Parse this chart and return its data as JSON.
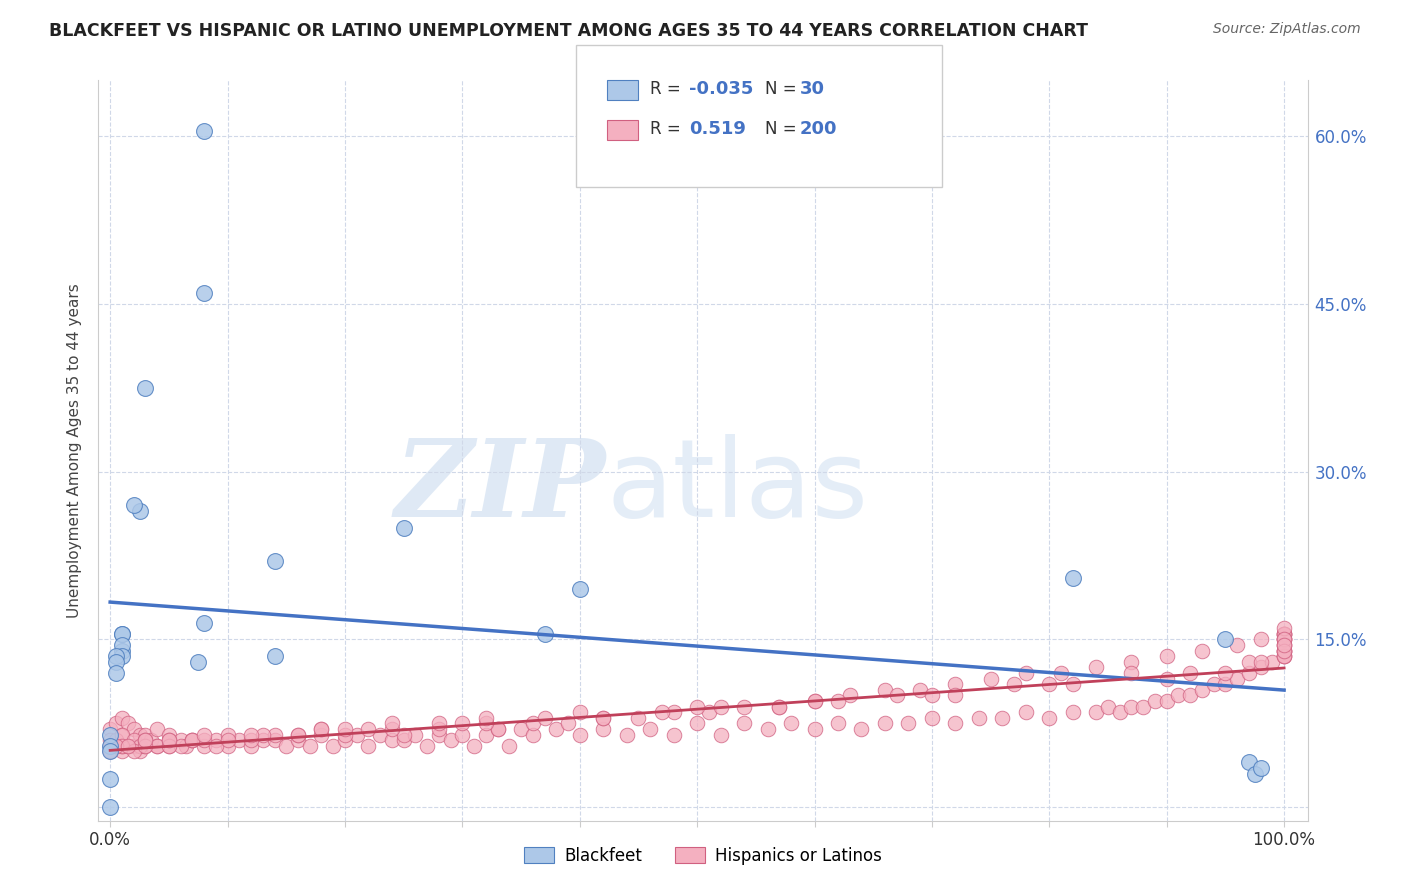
{
  "title": "BLACKFEET VS HISPANIC OR LATINO UNEMPLOYMENT AMONG AGES 35 TO 44 YEARS CORRELATION CHART",
  "source": "Source: ZipAtlas.com",
  "ylabel": "Unemployment Among Ages 35 to 44 years",
  "xlim": [
    -0.01,
    1.02
  ],
  "ylim": [
    -0.012,
    0.65
  ],
  "xticks": [
    0.0,
    0.1,
    0.2,
    0.3,
    0.4,
    0.5,
    0.6,
    0.7,
    0.8,
    0.9,
    1.0
  ],
  "xticklabels": [
    "0.0%",
    "",
    "",
    "",
    "",
    "",
    "",
    "",
    "",
    "",
    "100.0%"
  ],
  "yticks_right": [
    0.15,
    0.3,
    0.45,
    0.6
  ],
  "yticklabels_right": [
    "15.0%",
    "30.0%",
    "45.0%",
    "60.0%"
  ],
  "blue_color": "#adc8e8",
  "blue_edge_color": "#5080c0",
  "blue_line_color": "#4472c4",
  "pink_color": "#f4b0c0",
  "pink_edge_color": "#d06080",
  "pink_line_color": "#c0405a",
  "axis_label_color": "#4472c4",
  "grid_color": "#d0d8e8",
  "blackfeet_x": [
    0.08,
    0.03,
    0.025,
    0.02,
    0.01,
    0.01,
    0.01,
    0.01,
    0.01,
    0.005,
    0.005,
    0.005,
    0.0,
    0.0,
    0.0,
    0.0,
    0.0,
    0.14,
    0.14,
    0.25,
    0.37,
    0.4,
    0.08,
    0.08,
    0.075,
    0.82,
    0.95,
    0.97,
    0.975,
    0.98
  ],
  "blackfeet_y": [
    0.605,
    0.375,
    0.265,
    0.27,
    0.155,
    0.155,
    0.14,
    0.145,
    0.135,
    0.135,
    0.13,
    0.12,
    0.065,
    0.055,
    0.05,
    0.025,
    0.0,
    0.22,
    0.135,
    0.25,
    0.155,
    0.195,
    0.46,
    0.165,
    0.13,
    0.205,
    0.15,
    0.04,
    0.03,
    0.035
  ],
  "hispanic_x": [
    0.0,
    0.0,
    0.0,
    0.005,
    0.005,
    0.01,
    0.01,
    0.01,
    0.015,
    0.015,
    0.02,
    0.02,
    0.025,
    0.025,
    0.03,
    0.03,
    0.035,
    0.04,
    0.04,
    0.05,
    0.05,
    0.06,
    0.065,
    0.07,
    0.08,
    0.09,
    0.1,
    0.11,
    0.12,
    0.13,
    0.14,
    0.15,
    0.16,
    0.17,
    0.18,
    0.19,
    0.2,
    0.21,
    0.22,
    0.23,
    0.24,
    0.25,
    0.26,
    0.27,
    0.28,
    0.29,
    0.3,
    0.31,
    0.32,
    0.33,
    0.34,
    0.35,
    0.36,
    0.38,
    0.4,
    0.42,
    0.44,
    0.46,
    0.48,
    0.5,
    0.52,
    0.54,
    0.56,
    0.58,
    0.6,
    0.62,
    0.64,
    0.66,
    0.68,
    0.7,
    0.72,
    0.74,
    0.76,
    0.78,
    0.8,
    0.82,
    0.84,
    0.85,
    0.86,
    0.87,
    0.88,
    0.89,
    0.9,
    0.91,
    0.92,
    0.93,
    0.94,
    0.95,
    0.96,
    0.97,
    0.98,
    0.99,
    1.0,
    1.0,
    1.0,
    1.0,
    1.0,
    1.0,
    1.0,
    1.0,
    0.0,
    0.005,
    0.01,
    0.01,
    0.02,
    0.025,
    0.03,
    0.04,
    0.05,
    0.06,
    0.07,
    0.08,
    0.09,
    0.1,
    0.12,
    0.14,
    0.16,
    0.18,
    0.2,
    0.22,
    0.25,
    0.28,
    0.3,
    0.33,
    0.36,
    0.39,
    0.42,
    0.45,
    0.48,
    0.51,
    0.54,
    0.57,
    0.6,
    0.63,
    0.66,
    0.69,
    0.72,
    0.75,
    0.78,
    0.81,
    0.84,
    0.87,
    0.9,
    0.93,
    0.96,
    0.98,
    1.0,
    1.0,
    1.0,
    1.0,
    0.0,
    0.01,
    0.02,
    0.03,
    0.05,
    0.07,
    0.1,
    0.13,
    0.16,
    0.2,
    0.24,
    0.28,
    0.32,
    0.37,
    0.42,
    0.47,
    0.52,
    0.57,
    0.62,
    0.67,
    0.72,
    0.77,
    0.82,
    0.87,
    0.92,
    0.97,
    1.0,
    1.0,
    1.0,
    1.0,
    0.005,
    0.015,
    0.03,
    0.05,
    0.08,
    0.12,
    0.18,
    0.24,
    0.32,
    0.4,
    0.5,
    0.6,
    0.7,
    0.8,
    0.9,
    0.95,
    0.98,
    1.0,
    1.0,
    1.0
  ],
  "hispanic_y": [
    0.07,
    0.06,
    0.05,
    0.075,
    0.055,
    0.08,
    0.065,
    0.05,
    0.075,
    0.055,
    0.07,
    0.055,
    0.065,
    0.05,
    0.065,
    0.055,
    0.06,
    0.07,
    0.055,
    0.065,
    0.055,
    0.06,
    0.055,
    0.06,
    0.055,
    0.06,
    0.055,
    0.06,
    0.055,
    0.06,
    0.06,
    0.055,
    0.06,
    0.055,
    0.065,
    0.055,
    0.06,
    0.065,
    0.055,
    0.065,
    0.06,
    0.06,
    0.065,
    0.055,
    0.065,
    0.06,
    0.065,
    0.055,
    0.065,
    0.07,
    0.055,
    0.07,
    0.065,
    0.07,
    0.065,
    0.07,
    0.065,
    0.07,
    0.065,
    0.075,
    0.065,
    0.075,
    0.07,
    0.075,
    0.07,
    0.075,
    0.07,
    0.075,
    0.075,
    0.08,
    0.075,
    0.08,
    0.08,
    0.085,
    0.08,
    0.085,
    0.085,
    0.09,
    0.085,
    0.09,
    0.09,
    0.095,
    0.095,
    0.1,
    0.1,
    0.105,
    0.11,
    0.11,
    0.115,
    0.12,
    0.125,
    0.13,
    0.135,
    0.14,
    0.14,
    0.145,
    0.15,
    0.15,
    0.155,
    0.155,
    0.055,
    0.06,
    0.055,
    0.065,
    0.06,
    0.055,
    0.06,
    0.055,
    0.06,
    0.055,
    0.06,
    0.06,
    0.055,
    0.065,
    0.06,
    0.065,
    0.065,
    0.07,
    0.065,
    0.07,
    0.065,
    0.07,
    0.075,
    0.07,
    0.075,
    0.075,
    0.08,
    0.08,
    0.085,
    0.085,
    0.09,
    0.09,
    0.095,
    0.1,
    0.105,
    0.105,
    0.11,
    0.115,
    0.12,
    0.12,
    0.125,
    0.13,
    0.135,
    0.14,
    0.145,
    0.15,
    0.155,
    0.155,
    0.15,
    0.16,
    0.05,
    0.055,
    0.05,
    0.055,
    0.055,
    0.06,
    0.06,
    0.065,
    0.065,
    0.07,
    0.07,
    0.075,
    0.075,
    0.08,
    0.08,
    0.085,
    0.09,
    0.09,
    0.095,
    0.1,
    0.1,
    0.11,
    0.11,
    0.12,
    0.12,
    0.13,
    0.135,
    0.14,
    0.145,
    0.15,
    0.055,
    0.055,
    0.06,
    0.06,
    0.065,
    0.065,
    0.07,
    0.075,
    0.08,
    0.085,
    0.09,
    0.095,
    0.1,
    0.11,
    0.115,
    0.12,
    0.13,
    0.135,
    0.14,
    0.145
  ]
}
